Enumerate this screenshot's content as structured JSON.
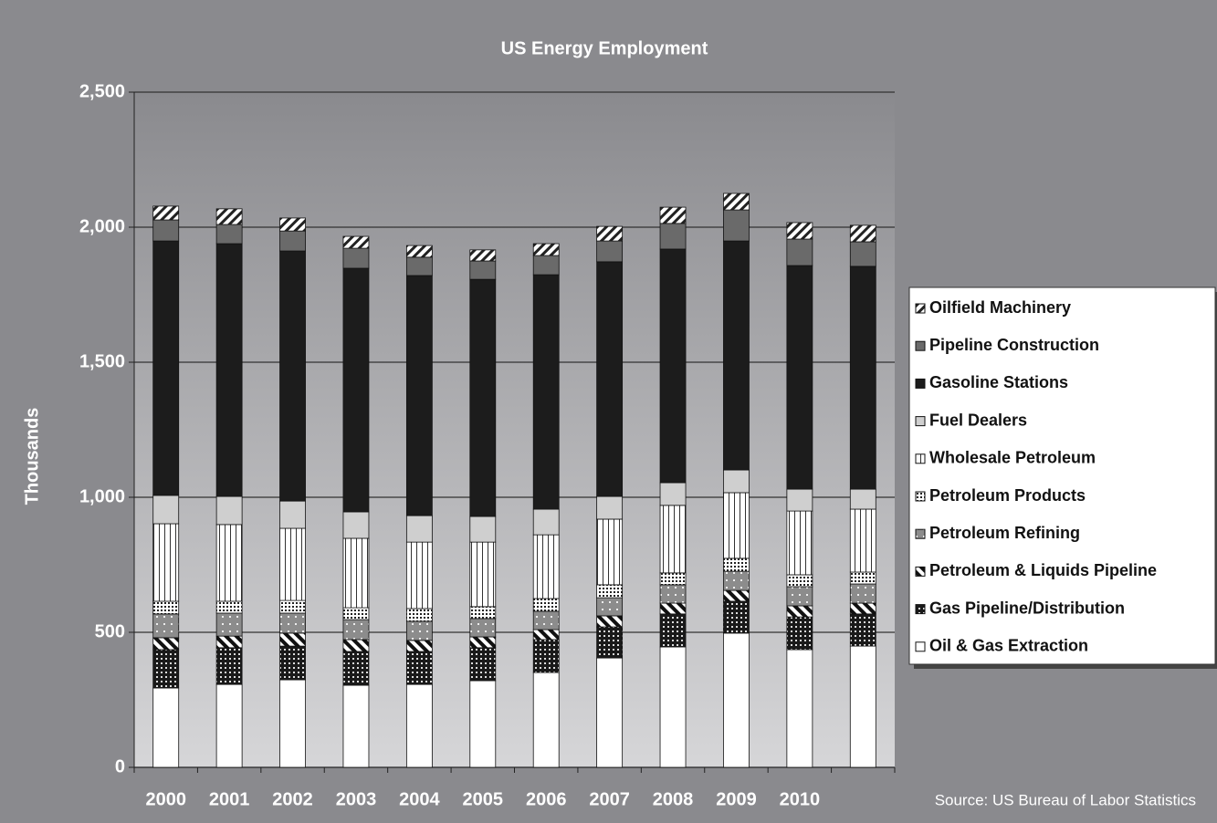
{
  "chart_data": {
    "type": "stacked_bar",
    "title": "US Energy Employment",
    "y_label": "Thousands",
    "source": "Source: US Bureau of Labor Statistics",
    "categories": [
      "2000",
      "2001",
      "2002",
      "2003",
      "2004",
      "2005",
      "2006",
      "2007",
      "2008",
      "2009",
      "2010",
      null
    ],
    "ylim": [
      0,
      2500
    ],
    "yticks": [
      0,
      500,
      {
        "value": 1000,
        "label": "1,000"
      },
      {
        "value": 1500,
        "label": "1,500"
      },
      {
        "value": 2000,
        "label": "2,000"
      },
      {
        "value": 2500,
        "label": "2,500"
      }
    ],
    "grid": true,
    "legend": "right",
    "series": [
      {
        "name": "Oil & Gas Extraction",
        "color": "#ffffff",
        "pattern": "solid",
        "values": [
          294,
          307,
          324,
          304,
          307,
          321,
          351,
          405,
          446,
          497,
          436,
          449
        ]
      },
      {
        "name": "Gas Pipeline/Distribution",
        "color": "#1a1a1a",
        "pattern": "dots-white",
        "values": [
          142,
          136,
          125,
          125,
          122,
          122,
          122,
          115,
          122,
          118,
          121,
          119
        ]
      },
      {
        "name": "Petroleum & Liquids Pipeline",
        "color": "#ffffff",
        "pattern": "diagonal-bold",
        "values": [
          44,
          43,
          48,
          44,
          41,
          40,
          37,
          41,
          40,
          40,
          41,
          40
        ]
      },
      {
        "name": "Petroleum Refining",
        "color": "#8c8c8c",
        "pattern": "dots-sparse",
        "values": [
          88,
          85,
          74,
          74,
          71,
          68,
          68,
          67,
          68,
          71,
          71,
          71
        ]
      },
      {
        "name": "Petroleum Products",
        "color": "#ffffff",
        "pattern": "dots-dense",
        "values": [
          47,
          44,
          47,
          44,
          47,
          44,
          47,
          48,
          44,
          48,
          44,
          44
        ]
      },
      {
        "name": "Wholesale Petroleum",
        "color": "#ffffff",
        "pattern": "vertical",
        "values": [
          287,
          284,
          267,
          257,
          246,
          239,
          236,
          243,
          250,
          243,
          236,
          233
        ]
      },
      {
        "name": "Fuel Dealers",
        "color": "#cfcfcf",
        "pattern": "solid",
        "values": [
          105,
          104,
          101,
          98,
          98,
          95,
          95,
          84,
          84,
          84,
          81,
          74
        ]
      },
      {
        "name": "Gasoline Stations",
        "color": "#1c1c1c",
        "pattern": "solid",
        "values": [
          942,
          936,
          926,
          902,
          889,
          878,
          868,
          869,
          865,
          848,
          828,
          825
        ]
      },
      {
        "name": "Pipeline Construction",
        "color": "#6a6a6a",
        "pattern": "solid",
        "values": [
          78,
          71,
          74,
          74,
          68,
          68,
          71,
          77,
          95,
          115,
          98,
          91
        ]
      },
      {
        "name": "Oilfield Machinery",
        "color": "#ffffff",
        "pattern": "diagonal",
        "values": [
          51,
          58,
          48,
          44,
          43,
          41,
          44,
          54,
          60,
          61,
          61,
          61
        ]
      }
    ]
  }
}
